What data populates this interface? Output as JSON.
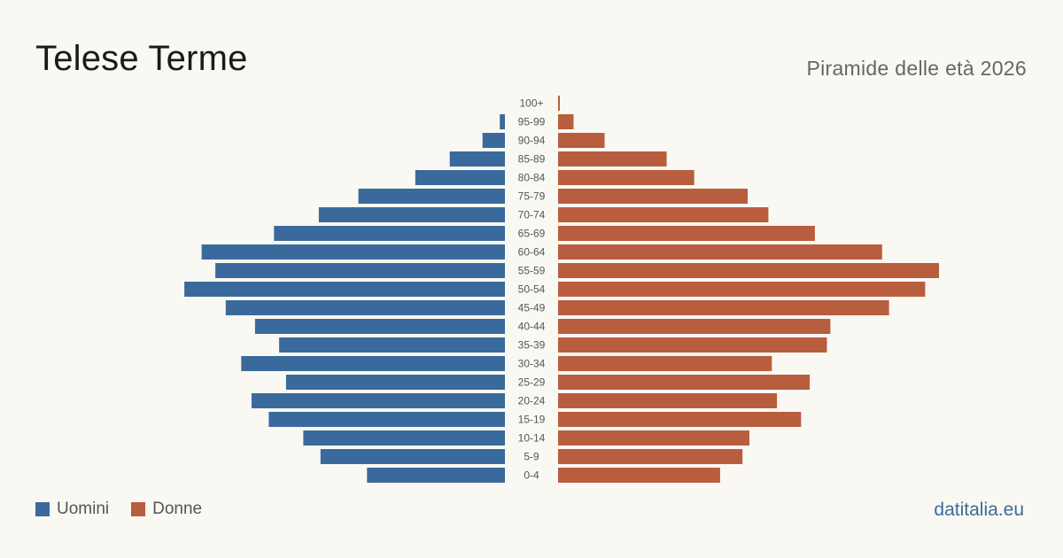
{
  "header": {
    "title": "Telese Terme",
    "subtitle": "Piramide delle età 2026"
  },
  "legend": {
    "men_label": "Uomini",
    "women_label": "Donne"
  },
  "footer": {
    "brand": "datitalia.eu"
  },
  "colors": {
    "men": "#3a6a9b",
    "women": "#b95d3f",
    "label": "#555555"
  },
  "chart_data": {
    "type": "bar",
    "orientation": "horizontal-pyramid",
    "categories": [
      "100+",
      "95-99",
      "90-94",
      "85-89",
      "80-84",
      "75-79",
      "70-74",
      "65-69",
      "60-64",
      "55-59",
      "50-54",
      "45-49",
      "40-44",
      "35-39",
      "30-34",
      "25-29",
      "20-24",
      "15-19",
      "10-14",
      "5-9",
      "0-4"
    ],
    "series": [
      {
        "name": "Uomini",
        "values": [
          0,
          3,
          13,
          32,
          52,
          85,
          108,
          134,
          176,
          168,
          186,
          162,
          145,
          131,
          153,
          127,
          147,
          137,
          117,
          107,
          80
        ]
      },
      {
        "name": "Donne",
        "values": [
          1,
          9,
          27,
          63,
          79,
          110,
          122,
          149,
          188,
          221,
          213,
          192,
          158,
          156,
          124,
          146,
          127,
          141,
          111,
          107,
          94
        ]
      }
    ],
    "xlim": [
      0,
      221
    ],
    "grid": false,
    "legend_position": "bottom-left"
  }
}
